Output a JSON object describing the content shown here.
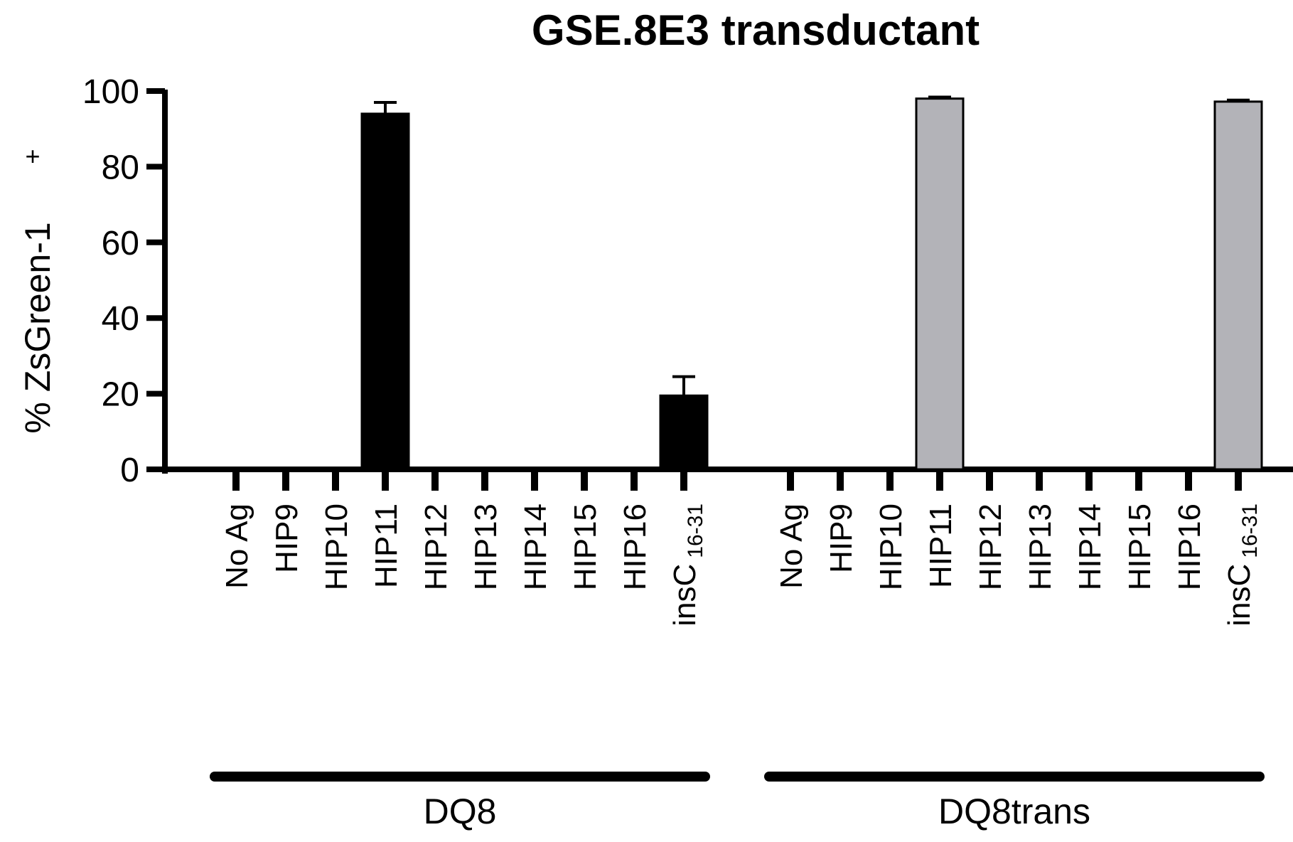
{
  "chart_data": {
    "type": "bar",
    "title": "GSE.8E3 transductant",
    "ylabel": "% ZsGreen-1",
    "ylabel_superscript": "+",
    "ylim": [
      0,
      100
    ],
    "yticks": [
      "0",
      "20",
      "40",
      "60",
      "80",
      "100"
    ],
    "groups": [
      {
        "name": "DQ8",
        "color": "#000000",
        "categories": [
          {
            "label": "No Ag",
            "sub": ""
          },
          {
            "label": "HIP9",
            "sub": ""
          },
          {
            "label": "HIP10",
            "sub": ""
          },
          {
            "label": "HIP11",
            "sub": ""
          },
          {
            "label": "HIP12",
            "sub": ""
          },
          {
            "label": "HIP13",
            "sub": ""
          },
          {
            "label": "HIP14",
            "sub": ""
          },
          {
            "label": "HIP15",
            "sub": ""
          },
          {
            "label": "HIP16",
            "sub": ""
          },
          {
            "label": "insC",
            "sub": "16-31"
          }
        ],
        "values": [
          0,
          0,
          0,
          94,
          0,
          0,
          0,
          0,
          0,
          19.5
        ],
        "errors": [
          0,
          0,
          0,
          3,
          0,
          0,
          0,
          0,
          0,
          5
        ]
      },
      {
        "name": "DQ8trans",
        "color": "#b3b3b8",
        "categories": [
          {
            "label": "No Ag",
            "sub": ""
          },
          {
            "label": "HIP9",
            "sub": ""
          },
          {
            "label": "HIP10",
            "sub": ""
          },
          {
            "label": "HIP11",
            "sub": ""
          },
          {
            "label": "HIP12",
            "sub": ""
          },
          {
            "label": "HIP13",
            "sub": ""
          },
          {
            "label": "HIP14",
            "sub": ""
          },
          {
            "label": "HIP15",
            "sub": ""
          },
          {
            "label": "HIP16",
            "sub": ""
          },
          {
            "label": "insC",
            "sub": "16-31"
          }
        ],
        "values": [
          0,
          0,
          0,
          98,
          0,
          0,
          0,
          0,
          0,
          97.2
        ],
        "errors": [
          0,
          0,
          0,
          0.4,
          0,
          0,
          0,
          0,
          0,
          0.4
        ]
      }
    ]
  }
}
